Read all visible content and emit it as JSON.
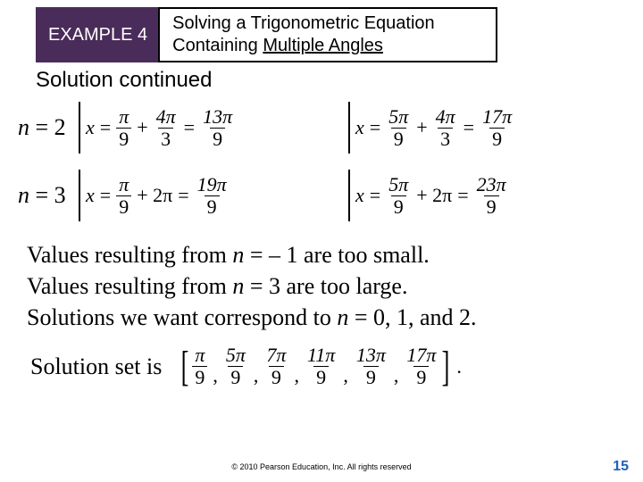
{
  "header": {
    "example_label": "EXAMPLE 4",
    "title_line1": "Solving a Trigonometric Equation",
    "title_line2_pre": "Containing ",
    "title_line2_uline": "Multiple Angles"
  },
  "subhead": "Solution continued",
  "rows": [
    {
      "n_label": "n",
      "n_eq": " = 2",
      "left": {
        "x": "x",
        "eq1": "=",
        "f1_num": "π",
        "f1_den": "9",
        "plus1": "+",
        "f2_num": "4π",
        "f2_den": "3",
        "eq2": "=",
        "f3_num": "13π",
        "f3_den": "9"
      },
      "right": {
        "x": "x",
        "eq1": "=",
        "f1_num": "5π",
        "f1_den": "9",
        "plus1": "+",
        "f2_num": "4π",
        "f2_den": "3",
        "eq2": "=",
        "f3_num": "17π",
        "f3_den": "9"
      }
    },
    {
      "n_label": "n",
      "n_eq": " = 3",
      "left": {
        "x": "x",
        "eq1": "=",
        "f1_num": "π",
        "f1_den": "9",
        "plus1": "+ 2π",
        "f2_num": "",
        "f2_den": "",
        "eq2": "=",
        "f3_num": "19π",
        "f3_den": "9"
      },
      "right": {
        "x": "x",
        "eq1": "=",
        "f1_num": "5π",
        "f1_den": "9",
        "plus1": "+ 2π",
        "f2_num": "",
        "f2_den": "",
        "eq2": "=",
        "f3_num": "23π",
        "f3_den": "9"
      }
    }
  ],
  "body": {
    "line1_a": "Values resulting from ",
    "line1_n": "n",
    "line1_b": " = – 1 are too small.",
    "line2_a": "Values resulting from ",
    "line2_n": "n",
    "line2_b": " = 3 are too large.",
    "line3_a": "Solutions we want correspond to ",
    "line3_n": "n",
    "line3_b": " = 0, 1, and 2."
  },
  "solution": {
    "label": "Solution set is",
    "items": [
      {
        "num": "π",
        "den": "9"
      },
      {
        "num": "5π",
        "den": "9"
      },
      {
        "num": "7π",
        "den": "9"
      },
      {
        "num": "11π",
        "den": "9"
      },
      {
        "num": "13π",
        "den": "9"
      },
      {
        "num": "17π",
        "den": "9"
      }
    ]
  },
  "footer": {
    "copyright": "© 2010 Pearson Education, Inc.  All rights reserved",
    "page": "15"
  }
}
